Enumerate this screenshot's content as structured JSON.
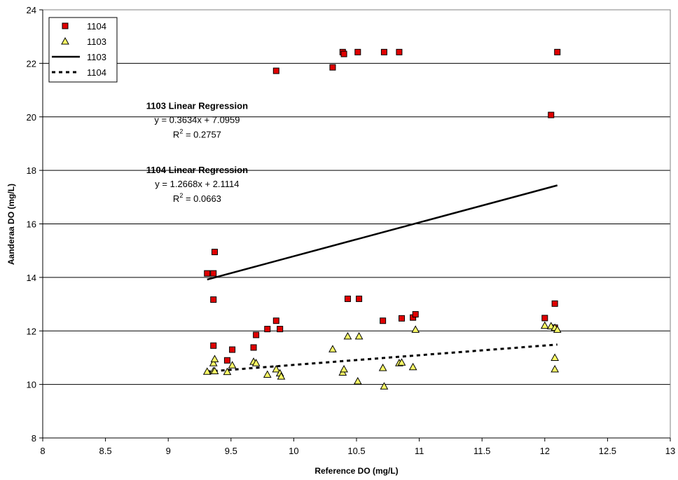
{
  "chart_data": {
    "type": "scatter",
    "xlabel": "Reference DO (mg/L)",
    "ylabel": "Aanderaa DO (mg/L)",
    "xlim": [
      8,
      13
    ],
    "ylim": [
      8,
      24
    ],
    "x_ticks": [
      8,
      8.5,
      9,
      9.5,
      10,
      10.5,
      11,
      11.5,
      12,
      12.5,
      13
    ],
    "x_tick_labels": [
      "8",
      "8.5",
      "9",
      "9.5",
      "10",
      "10.5",
      "11",
      "11.5",
      "12",
      "12.5",
      "13"
    ],
    "y_ticks": [
      8,
      10,
      12,
      14,
      16,
      18,
      20,
      22,
      24
    ],
    "y_tick_labels": [
      "8",
      "10",
      "12",
      "14",
      "16",
      "18",
      "20",
      "22",
      "24"
    ],
    "grid": "horizontal",
    "legend_position": "top-left",
    "series": [
      {
        "name": "1104",
        "kind": "points",
        "marker": "square",
        "color": "#e00000",
        "points": [
          [
            9.31,
            14.15
          ],
          [
            9.36,
            14.15
          ],
          [
            9.37,
            14.95
          ],
          [
            9.36,
            13.17
          ],
          [
            9.36,
            11.45
          ],
          [
            9.47,
            10.9
          ],
          [
            9.51,
            11.3
          ],
          [
            9.68,
            11.38
          ],
          [
            9.7,
            11.85
          ],
          [
            9.79,
            12.07
          ],
          [
            9.86,
            12.38
          ],
          [
            9.89,
            12.07
          ],
          [
            9.86,
            21.72
          ],
          [
            10.31,
            21.85
          ],
          [
            10.39,
            22.42
          ],
          [
            10.4,
            22.35
          ],
          [
            10.43,
            13.2
          ],
          [
            10.51,
            22.42
          ],
          [
            10.52,
            13.2
          ],
          [
            10.71,
            12.38
          ],
          [
            10.72,
            22.42
          ],
          [
            10.84,
            22.42
          ],
          [
            10.86,
            12.47
          ],
          [
            10.95,
            12.5
          ],
          [
            10.97,
            12.62
          ],
          [
            12.0,
            12.48
          ],
          [
            12.05,
            20.07
          ],
          [
            12.08,
            13.02
          ],
          [
            12.08,
            12.12
          ],
          [
            12.1,
            22.42
          ]
        ]
      },
      {
        "name": "1103",
        "kind": "points",
        "marker": "triangle",
        "color": "#ffff66",
        "points": [
          [
            9.31,
            10.48
          ],
          [
            9.36,
            10.5
          ],
          [
            9.36,
            10.8
          ],
          [
            9.37,
            10.95
          ],
          [
            9.37,
            10.5
          ],
          [
            9.47,
            10.47
          ],
          [
            9.51,
            10.72
          ],
          [
            9.68,
            10.85
          ],
          [
            9.7,
            10.8
          ],
          [
            9.79,
            10.37
          ],
          [
            9.86,
            10.57
          ],
          [
            9.89,
            10.42
          ],
          [
            9.9,
            10.3
          ],
          [
            10.31,
            11.32
          ],
          [
            10.39,
            10.45
          ],
          [
            10.4,
            10.57
          ],
          [
            10.43,
            11.8
          ],
          [
            10.51,
            10.12
          ],
          [
            10.52,
            11.8
          ],
          [
            10.71,
            10.62
          ],
          [
            10.72,
            9.93
          ],
          [
            10.84,
            10.8
          ],
          [
            10.86,
            10.82
          ],
          [
            10.95,
            10.65
          ],
          [
            10.97,
            12.05
          ],
          [
            12.0,
            12.2
          ],
          [
            12.05,
            12.18
          ],
          [
            12.08,
            12.12
          ],
          [
            12.08,
            11.0
          ],
          [
            12.08,
            10.57
          ],
          [
            12.1,
            12.05
          ]
        ]
      },
      {
        "name": "1103",
        "kind": "line",
        "dash": "solid",
        "color": "#000000",
        "points": [
          [
            9.31,
            13.92
          ],
          [
            12.1,
            17.44
          ]
        ]
      },
      {
        "name": "1104",
        "kind": "line",
        "dash": "dashed",
        "color": "#000000",
        "points": [
          [
            9.31,
            10.48
          ],
          [
            12.1,
            11.49
          ]
        ]
      }
    ],
    "annotations": [
      {
        "title": "1103 Linear Regression",
        "equation": "y = 0.3634x + 7.0959",
        "r2_prefix": "R",
        "r2_exp": "2",
        "r2_value": " = 0.2757",
        "x": 9.23,
        "y": 20.3
      },
      {
        "title": "1104 Linear Regression",
        "equation": "y = 1.2668x + 2.1114",
        "r2_prefix": "R",
        "r2_exp": "2",
        "r2_value": " = 0.0663",
        "x": 9.23,
        "y": 17.9
      }
    ]
  }
}
